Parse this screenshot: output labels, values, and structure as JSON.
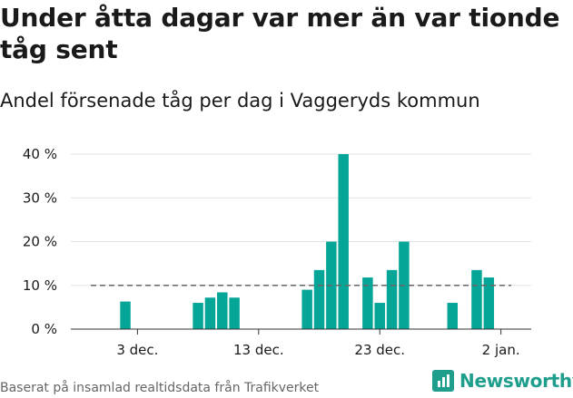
{
  "header": {
    "title": "Under åtta dagar var mer än var tionde tåg sent",
    "subtitle": "Andel försenade tåg per dag i Vaggeryds kommun"
  },
  "footer": {
    "source": "Baserat på insamlad realtidsdata från Trafikverket",
    "brand": "Newsworthy"
  },
  "colors": {
    "bar": "#05a597",
    "reference_line": "#666666",
    "brand": "#1f9e8c"
  },
  "chart_data": {
    "type": "bar",
    "title": "Under åtta dagar var mer än var tionde tåg sent",
    "subtitle": "Andel försenade tåg per dag i Vaggeryds kommun",
    "unit": "%",
    "ylim": [
      0,
      40
    ],
    "yticks": [
      0,
      10,
      20,
      30,
      40
    ],
    "ytick_labels": [
      "0 %",
      "10 %",
      "20 %",
      "30 %",
      "40 %"
    ],
    "x_tick_labels": [
      {
        "date": "2019-12-03",
        "label": "3 dec."
      },
      {
        "date": "2019-12-13",
        "label": "13 dec."
      },
      {
        "date": "2019-12-23",
        "label": "23 dec."
      },
      {
        "date": "2020-01-02",
        "label": "2 jan."
      }
    ],
    "reference_line": 10,
    "grid": true,
    "series": [
      {
        "values": [
          {
            "date": "2019-12-02",
            "value": 6.3
          },
          {
            "date": "2019-12-08",
            "value": 6.0
          },
          {
            "date": "2019-12-09",
            "value": 7.2
          },
          {
            "date": "2019-12-10",
            "value": 8.4
          },
          {
            "date": "2019-12-11",
            "value": 7.2
          },
          {
            "date": "2019-12-17",
            "value": 9.0
          },
          {
            "date": "2019-12-18",
            "value": 13.5
          },
          {
            "date": "2019-12-19",
            "value": 20.0
          },
          {
            "date": "2019-12-20",
            "value": 40.0
          },
          {
            "date": "2019-12-22",
            "value": 11.8
          },
          {
            "date": "2019-12-23",
            "value": 6.0
          },
          {
            "date": "2019-12-24",
            "value": 13.5
          },
          {
            "date": "2019-12-25",
            "value": 20.0
          },
          {
            "date": "2019-12-29",
            "value": 6.0
          },
          {
            "date": "2019-12-31",
            "value": 13.5
          },
          {
            "date": "2020-01-01",
            "value": 11.8
          }
        ]
      }
    ]
  }
}
